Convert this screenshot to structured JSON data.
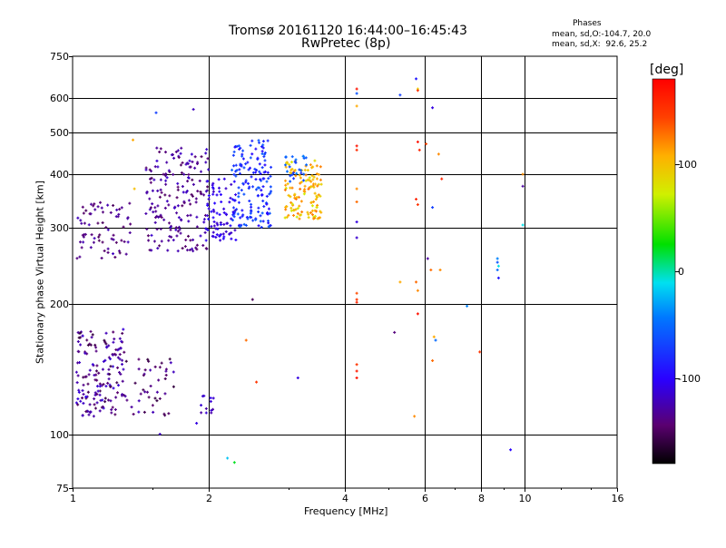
{
  "chart_data": {
    "type": "scatter",
    "title": "Tromsø 20161120 16:44:00–16:45:43",
    "subtitle": "RwPretec (8p)",
    "xlabel": "Frequency [MHz]",
    "ylabel": "Stationary phase Virtual Height [km]",
    "x_scale": "log",
    "y_scale": "log",
    "xlim": [
      1,
      16
    ],
    "ylim": [
      75,
      750
    ],
    "x_ticks": [
      1,
      2,
      4,
      6,
      8,
      10,
      16
    ],
    "y_ticks": [
      75,
      100,
      200,
      300,
      400,
      500,
      600,
      750
    ],
    "x_tick_labels": [
      "1",
      "2",
      "4",
      "6",
      "8",
      "10",
      "16"
    ],
    "y_tick_labels": [
      "75",
      "100",
      "200",
      "300",
      "400",
      "500",
      "600",
      "750"
    ],
    "grid": true,
    "stats": {
      "heading": "Phases",
      "line_o": "mean, sd,O:-104.7, 20.0",
      "line_x": "mean, sd,X:  92.6, 25.2"
    },
    "colorbar": {
      "label": "[deg]",
      "range": [
        -180,
        180
      ],
      "ticks": [
        100,
        0,
        -100
      ],
      "tick_labels": [
        "100",
        "0",
        "-100"
      ],
      "colormap": "rainbow (black-purple-blue-cyan-green-yellow-orange-red)"
    },
    "clusters": [
      {
        "f": [
          1.02,
          1.3
        ],
        "h": [
          110,
          175
        ],
        "phase": [
          -160,
          -110
        ],
        "n": 160
      },
      {
        "f": [
          1.3,
          1.7
        ],
        "h": [
          110,
          150
        ],
        "phase": [
          -160,
          -120
        ],
        "n": 45
      },
      {
        "f": [
          1.9,
          2.05
        ],
        "h": [
          112,
          125
        ],
        "phase": [
          -130,
          -105
        ],
        "n": 12
      },
      {
        "f": [
          1.02,
          1.35
        ],
        "h": [
          255,
          345
        ],
        "phase": [
          -150,
          -120
        ],
        "n": 70
      },
      {
        "f": [
          1.45,
          2.0
        ],
        "h": [
          265,
          460
        ],
        "phase": [
          -150,
          -115
        ],
        "n": 180
      },
      {
        "f": [
          1.95,
          2.3
        ],
        "h": [
          280,
          390
        ],
        "phase": [
          -120,
          -95
        ],
        "n": 80
      },
      {
        "f": [
          2.25,
          2.75
        ],
        "h": [
          300,
          480
        ],
        "phase": [
          -100,
          -55
        ],
        "n": 160
      },
      {
        "f": [
          2.95,
          3.55
        ],
        "h": [
          315,
          430
        ],
        "phase": [
          70,
          130
        ],
        "n": 130
      },
      {
        "f": [
          2.95,
          3.3
        ],
        "h": [
          380,
          440
        ],
        "phase": [
          -80,
          -40
        ],
        "n": 25
      }
    ],
    "points": [
      {
        "f": 1.53,
        "h": 555,
        "phase": -70
      },
      {
        "f": 1.85,
        "h": 565,
        "phase": -120
      },
      {
        "f": 1.36,
        "h": 480,
        "phase": 110
      },
      {
        "f": 1.37,
        "h": 370,
        "phase": 100
      },
      {
        "f": 1.07,
        "h": 122,
        "phase": -100
      },
      {
        "f": 1.56,
        "h": 100,
        "phase": -120
      },
      {
        "f": 2.5,
        "h": 205,
        "phase": -150
      },
      {
        "f": 2.42,
        "h": 165,
        "phase": 130
      },
      {
        "f": 2.55,
        "h": 132,
        "phase": 150
      },
      {
        "f": 3.15,
        "h": 135,
        "phase": -110
      },
      {
        "f": 2.2,
        "h": 88,
        "phase": -20
      },
      {
        "f": 2.28,
        "h": 86,
        "phase": 20
      },
      {
        "f": 1.88,
        "h": 106,
        "phase": -110
      },
      {
        "f": 4.25,
        "h": 630,
        "phase": 170
      },
      {
        "f": 4.25,
        "h": 615,
        "phase": -60
      },
      {
        "f": 4.25,
        "h": 575,
        "phase": 110
      },
      {
        "f": 4.25,
        "h": 465,
        "phase": 170
      },
      {
        "f": 4.25,
        "h": 455,
        "phase": 155
      },
      {
        "f": 4.25,
        "h": 370,
        "phase": 120
      },
      {
        "f": 4.25,
        "h": 345,
        "phase": 130
      },
      {
        "f": 4.25,
        "h": 310,
        "phase": -110
      },
      {
        "f": 4.25,
        "h": 285,
        "phase": -115
      },
      {
        "f": 4.25,
        "h": 212,
        "phase": 140
      },
      {
        "f": 4.25,
        "h": 205,
        "phase": 150
      },
      {
        "f": 4.25,
        "h": 202,
        "phase": 160
      },
      {
        "f": 4.25,
        "h": 145,
        "phase": 150
      },
      {
        "f": 4.25,
        "h": 140,
        "phase": 165
      },
      {
        "f": 4.25,
        "h": 135,
        "phase": 170
      },
      {
        "f": 5.3,
        "h": 610,
        "phase": -70
      },
      {
        "f": 5.75,
        "h": 665,
        "phase": -90
      },
      {
        "f": 5.8,
        "h": 630,
        "phase": 90
      },
      {
        "f": 5.8,
        "h": 625,
        "phase": 150
      },
      {
        "f": 5.8,
        "h": 475,
        "phase": 170
      },
      {
        "f": 5.85,
        "h": 455,
        "phase": 160
      },
      {
        "f": 5.75,
        "h": 350,
        "phase": 160
      },
      {
        "f": 5.8,
        "h": 340,
        "phase": 150
      },
      {
        "f": 5.75,
        "h": 225,
        "phase": 130
      },
      {
        "f": 5.8,
        "h": 215,
        "phase": 120
      },
      {
        "f": 5.8,
        "h": 190,
        "phase": 170
      },
      {
        "f": 5.7,
        "h": 110,
        "phase": 120
      },
      {
        "f": 5.3,
        "h": 225,
        "phase": 110
      },
      {
        "f": 5.15,
        "h": 172,
        "phase": -140
      },
      {
        "f": 6.05,
        "h": 470,
        "phase": 140
      },
      {
        "f": 6.1,
        "h": 255,
        "phase": -130
      },
      {
        "f": 6.2,
        "h": 240,
        "phase": 130
      },
      {
        "f": 6.25,
        "h": 570,
        "phase": -110
      },
      {
        "f": 6.25,
        "h": 335,
        "phase": -70
      },
      {
        "f": 6.3,
        "h": 168,
        "phase": 110
      },
      {
        "f": 6.35,
        "h": 165,
        "phase": -50
      },
      {
        "f": 6.45,
        "h": 445,
        "phase": 120
      },
      {
        "f": 6.55,
        "h": 390,
        "phase": 160
      },
      {
        "f": 6.5,
        "h": 240,
        "phase": 120
      },
      {
        "f": 6.25,
        "h": 148,
        "phase": 130
      },
      {
        "f": 7.45,
        "h": 198,
        "phase": -40
      },
      {
        "f": 7.95,
        "h": 155,
        "phase": 150
      },
      {
        "f": 8.7,
        "h": 255,
        "phase": -40
      },
      {
        "f": 8.7,
        "h": 250,
        "phase": -60
      },
      {
        "f": 8.75,
        "h": 245,
        "phase": -10
      },
      {
        "f": 8.7,
        "h": 240,
        "phase": -50
      },
      {
        "f": 8.75,
        "h": 230,
        "phase": -90
      },
      {
        "f": 9.3,
        "h": 92,
        "phase": -100
      },
      {
        "f": 9.9,
        "h": 400,
        "phase": 120
      },
      {
        "f": 9.9,
        "h": 375,
        "phase": -130
      },
      {
        "f": 9.9,
        "h": 305,
        "phase": -10
      }
    ]
  }
}
